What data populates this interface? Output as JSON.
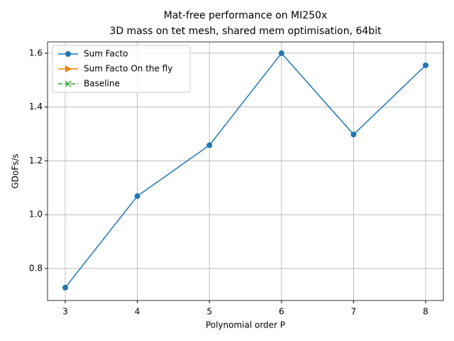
{
  "chart_data": {
    "type": "line",
    "title": [
      "Mat-free performance on MI250x",
      "3D mass on tet mesh, shared mem optimisation, 64bit"
    ],
    "xlabel": "Polynomial order P",
    "ylabel": "GDoFs/s",
    "x": [
      3,
      4,
      5,
      6,
      7,
      8
    ],
    "series": [
      {
        "name": "Sum Facto",
        "color": "#1f77b4",
        "marker": "circle",
        "linestyle": "solid",
        "values": [
          0.729,
          1.069,
          1.258,
          1.6,
          1.298,
          1.555
        ]
      },
      {
        "name": "Sum Facto On the fly",
        "color": "#ff7f0e",
        "marker": "triangle-right",
        "linestyle": "solid",
        "values": [
          null,
          null,
          null,
          null,
          null,
          null
        ]
      },
      {
        "name": "Baseline",
        "color": "#2ca02c",
        "marker": "x",
        "linestyle": "dashed",
        "values": [
          null,
          null,
          null,
          null,
          null,
          null
        ]
      }
    ],
    "xlim": [
      2.754,
      8.246
    ],
    "xticks": [
      3,
      4,
      5,
      6,
      7,
      8
    ],
    "ylim": [
      0.681,
      1.642
    ],
    "yticks": [
      {
        "value": 0.8,
        "label": "0.8"
      },
      {
        "value": 1.0,
        "label": "1.0"
      },
      {
        "value": 1.2,
        "label": "1.2"
      },
      {
        "value": 1.4,
        "label": "1.4"
      },
      {
        "value": 1.6,
        "label": "1.6"
      }
    ],
    "grid": true,
    "legend": "upper left"
  }
}
